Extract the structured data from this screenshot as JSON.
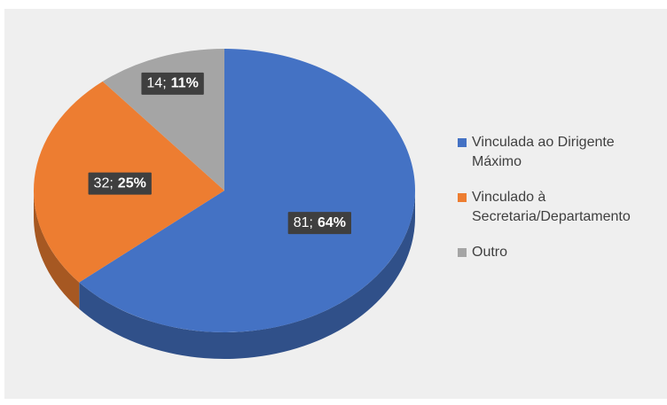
{
  "chart_data": {
    "type": "pie",
    "categories": [
      "Vinculada ao Dirigente Máximo",
      "Vinculado à Secretaria/Departamento",
      "Outro"
    ],
    "values": [
      81,
      32,
      14
    ],
    "value_labels": [
      [
        "81;",
        "64%"
      ],
      [
        "32;",
        "25%"
      ],
      [
        "14;",
        "11%"
      ]
    ],
    "colors": [
      "#4472c4",
      "#ed7d31",
      "#a5a5a5"
    ],
    "legend": "right"
  }
}
